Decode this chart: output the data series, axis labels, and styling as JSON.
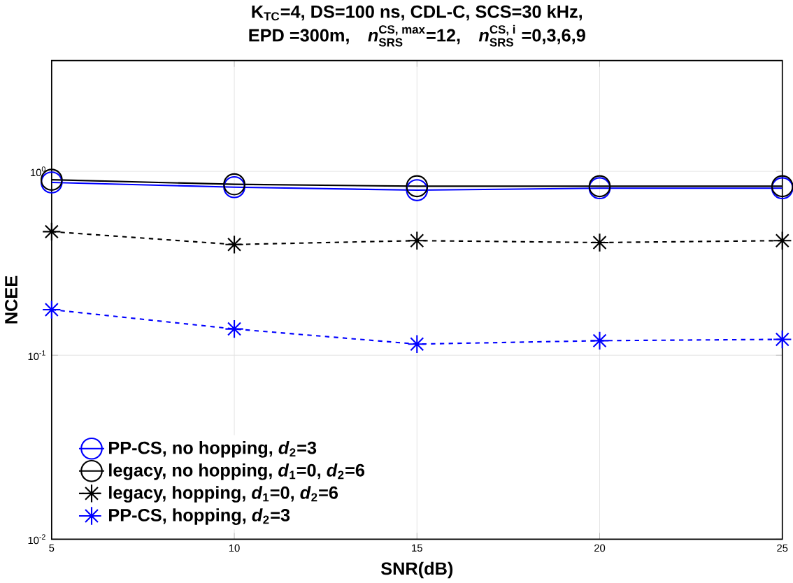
{
  "chart_data": {
    "type": "line",
    "title": "K$_{TC}$=4, DS=100 ns,  CDL-C, SCS=30 kHz,",
    "subtitle": "\\textbf{EPD =300m,}\\quad \\textbf{\\textit{n}}^{\\textbf{CS, max}}_{\\textbf{SRS}}\\textbf{=12,}\\quad \\textbf{\\textit{n}}^{\\textbf{CS, i}}_{\\textbf{SRS}}\\textbf{ =0,3,6,9}",
    "xlabel": "SNR(dB)",
    "ylabel": "NCEE",
    "x": [
      5,
      10,
      15,
      20,
      25
    ],
    "log": "y",
    "xlim": [
      5,
      25
    ],
    "ylim": [
      0.01,
      4
    ],
    "xticks": [
      5,
      10,
      15,
      20,
      25
    ],
    "yticks": [
      {
        "value": 0.01,
        "label": "10$^{-2}$"
      },
      {
        "value": 0.1,
        "label": "10$^{-1}$"
      },
      {
        "value": 1,
        "label": "10$^{0}$"
      }
    ],
    "grid": true,
    "legend": "bottom left",
    "series": [
      {
        "name": "PP-CS, no hopping,   *d*$_{2}$=3",
        "color": "#0000ff",
        "marker": "circle",
        "line_style": "solid",
        "values": [
          0.87,
          0.82,
          0.79,
          0.81,
          0.81
        ]
      },
      {
        "name": "legacy, no hopping,   *d*$_{1}$=0,  *d*$_{2}$=6",
        "color": "#000000",
        "marker": "circle",
        "line_style": "solid",
        "values": [
          0.9,
          0.85,
          0.83,
          0.83,
          0.83
        ]
      },
      {
        "name": "legacy, hopping,   *d*$_{1}$=0,  *d*$_{2}$=6",
        "color": "#000000",
        "marker": "cross",
        "line_style": "dashed",
        "values": [
          0.47,
          0.4,
          0.42,
          0.41,
          0.42
        ]
      },
      {
        "name": "PP-CS, hopping,  *d*$_{2}$=3",
        "color": "#0000ff",
        "marker": "cross",
        "line_style": "dashed",
        "values": [
          0.177,
          0.139,
          0.115,
          0.12,
          0.122
        ]
      }
    ]
  }
}
